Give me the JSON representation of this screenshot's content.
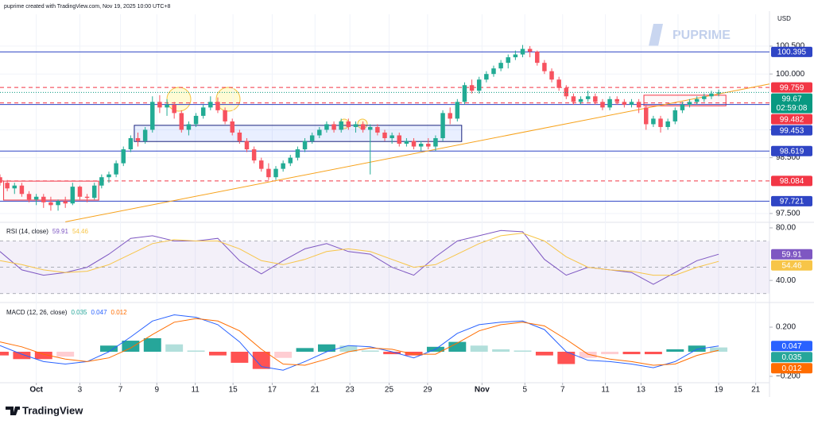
{
  "header": {
    "credit": "puprime created with TradingView.com, Nov 19, 2025 10:00 UTC+8",
    "currency": "USD",
    "watermark": "PUPRIME",
    "brand": "TradingView"
  },
  "chart_data": [
    {
      "type": "candlestick",
      "x": [
        0,
        1,
        2,
        3,
        4,
        5,
        6,
        7,
        8,
        9,
        10,
        11,
        12,
        13,
        14,
        15,
        16,
        17,
        18,
        19,
        20,
        21,
        22,
        23,
        24,
        25,
        26,
        27,
        28,
        29,
        30,
        31,
        32,
        33,
        34,
        35,
        36,
        37,
        38,
        39,
        40,
        41,
        42,
        43,
        44,
        45,
        46,
        47,
        48,
        49,
        50,
        51,
        52,
        53,
        54,
        55,
        56,
        57,
        58,
        59,
        60,
        61,
        62,
        63,
        64,
        65,
        66,
        67,
        68,
        69,
        70,
        71,
        72,
        73,
        74,
        75,
        76,
        77,
        78,
        79,
        80,
        81,
        82,
        83,
        84,
        85,
        86,
        87,
        88,
        89,
        90,
        91,
        92,
        93,
        94,
        95,
        96,
        97,
        98,
        99
      ],
      "open": [
        98.15,
        98.05,
        97.95,
        98.0,
        97.85,
        97.75,
        97.8,
        97.7,
        97.65,
        97.72,
        97.68,
        97.98,
        97.8,
        97.78,
        98.0,
        98.15,
        98.2,
        98.4,
        98.65,
        98.85,
        98.8,
        99.0,
        99.5,
        99.4,
        99.45,
        99.3,
        99.0,
        99.1,
        99.25,
        99.4,
        99.5,
        99.35,
        99.15,
        98.95,
        98.8,
        98.65,
        98.45,
        98.3,
        98.15,
        98.3,
        98.4,
        98.5,
        98.65,
        98.8,
        98.9,
        99.0,
        99.1,
        99.0,
        99.15,
        99.05,
        99.1,
        99.0,
        99.05,
        98.95,
        98.85,
        98.9,
        98.75,
        98.8,
        98.7,
        98.75,
        98.7,
        98.85,
        99.3,
        99.2,
        99.5,
        99.8,
        99.7,
        99.9,
        100.0,
        100.1,
        100.2,
        100.3,
        100.35,
        100.45,
        100.4,
        100.2,
        100.05,
        99.9,
        99.75,
        99.6,
        99.5,
        99.55,
        99.6,
        99.5,
        99.4,
        99.55,
        99.5,
        99.45,
        99.5,
        99.4,
        99.1,
        99.2,
        99.05,
        99.15,
        99.35,
        99.45,
        99.5,
        99.55,
        99.6,
        99.65
      ],
      "high": [
        98.2,
        98.1,
        98.05,
        98.05,
        97.9,
        97.85,
        97.85,
        97.8,
        97.75,
        97.8,
        98.05,
        98.0,
        97.85,
        98.05,
        98.2,
        98.25,
        98.45,
        98.7,
        98.9,
        98.95,
        99.05,
        99.6,
        99.62,
        99.55,
        99.5,
        99.35,
        99.15,
        99.3,
        99.45,
        99.6,
        99.58,
        99.4,
        99.2,
        99.0,
        98.85,
        98.7,
        98.5,
        98.4,
        98.35,
        98.45,
        98.55,
        98.7,
        98.85,
        98.95,
        99.05,
        99.15,
        99.15,
        99.2,
        99.2,
        99.15,
        99.15,
        99.1,
        99.1,
        99.0,
        98.95,
        98.95,
        98.85,
        98.85,
        98.8,
        98.85,
        98.9,
        99.35,
        99.4,
        99.55,
        99.85,
        99.9,
        99.95,
        100.05,
        100.15,
        100.25,
        100.35,
        100.42,
        100.52,
        100.5,
        100.42,
        100.25,
        100.1,
        99.95,
        99.8,
        99.65,
        99.6,
        99.7,
        99.65,
        99.55,
        99.6,
        99.6,
        99.55,
        99.55,
        99.55,
        99.45,
        99.25,
        99.25,
        99.2,
        99.4,
        99.5,
        99.55,
        99.6,
        99.65,
        99.7,
        99.72
      ],
      "low": [
        98.0,
        97.9,
        97.85,
        97.8,
        97.7,
        97.65,
        97.6,
        97.55,
        97.55,
        97.6,
        97.65,
        97.75,
        97.7,
        97.75,
        97.95,
        98.05,
        98.15,
        98.35,
        98.6,
        98.7,
        98.75,
        98.95,
        99.3,
        99.25,
        99.2,
        98.95,
        98.9,
        99.05,
        99.2,
        99.35,
        99.3,
        99.1,
        98.9,
        98.75,
        98.6,
        98.4,
        98.25,
        98.1,
        98.1,
        98.25,
        98.35,
        98.45,
        98.6,
        98.75,
        98.85,
        98.95,
        98.95,
        98.95,
        99.0,
        98.95,
        98.95,
        98.2,
        98.9,
        98.8,
        98.75,
        98.7,
        98.7,
        98.65,
        98.62,
        98.65,
        98.62,
        98.8,
        99.1,
        99.15,
        99.45,
        99.65,
        99.65,
        99.85,
        99.95,
        100.05,
        100.1,
        100.25,
        100.3,
        100.3,
        100.15,
        100.0,
        99.85,
        99.7,
        99.55,
        99.45,
        99.45,
        99.5,
        99.45,
        99.35,
        99.35,
        99.45,
        99.4,
        99.4,
        99.3,
        99.0,
        99.05,
        98.95,
        99.0,
        99.1,
        99.3,
        99.4,
        99.45,
        99.5,
        99.55,
        99.6
      ],
      "close": [
        98.05,
        97.95,
        98.0,
        97.85,
        97.75,
        97.8,
        97.7,
        97.65,
        97.72,
        97.68,
        97.98,
        97.8,
        97.78,
        98.0,
        98.15,
        98.2,
        98.4,
        98.65,
        98.85,
        98.8,
        99.0,
        99.5,
        99.4,
        99.45,
        99.3,
        99.0,
        99.1,
        99.25,
        99.4,
        99.5,
        99.35,
        99.15,
        98.95,
        98.8,
        98.65,
        98.45,
        98.3,
        98.15,
        98.3,
        98.4,
        98.5,
        98.65,
        98.8,
        98.9,
        99.0,
        99.1,
        99.0,
        99.15,
        99.05,
        99.1,
        99.0,
        99.05,
        98.95,
        98.85,
        98.9,
        98.75,
        98.8,
        98.7,
        98.75,
        98.7,
        98.85,
        99.3,
        99.2,
        99.5,
        99.8,
        99.7,
        99.9,
        100.0,
        100.1,
        100.2,
        100.3,
        100.35,
        100.45,
        100.4,
        100.2,
        100.05,
        99.9,
        99.75,
        99.6,
        99.5,
        99.55,
        99.6,
        99.5,
        99.4,
        99.55,
        99.5,
        99.45,
        99.5,
        99.4,
        99.1,
        99.2,
        99.05,
        99.15,
        99.35,
        99.45,
        99.5,
        99.55,
        99.6,
        99.65,
        99.67
      ],
      "up_color": "#22ab94",
      "down_color": "#f7525f",
      "countdown": "02:59:08",
      "last_color": "#089981",
      "xlim": [
        0,
        106
      ],
      "xticks": [
        {
          "value": 5.0,
          "label": "Oct"
        },
        {
          "value": 11.0,
          "label": "3"
        },
        {
          "value": 16.6,
          "label": "7"
        },
        {
          "value": 21.6,
          "label": "9"
        },
        {
          "value": 26.9,
          "label": "11"
        },
        {
          "value": 32.1,
          "label": "15"
        },
        {
          "value": 37.5,
          "label": "17"
        },
        {
          "value": 43.4,
          "label": "21"
        },
        {
          "value": 48.2,
          "label": "23"
        },
        {
          "value": 53.6,
          "label": "25"
        },
        {
          "value": 58.9,
          "label": "29"
        },
        {
          "value": 66.4,
          "label": "Nov"
        },
        {
          "value": 72.3,
          "label": "5"
        },
        {
          "value": 77.5,
          "label": "7"
        },
        {
          "value": 83.4,
          "label": "11"
        },
        {
          "value": 88.3,
          "label": "13"
        },
        {
          "value": 93.4,
          "label": "15"
        },
        {
          "value": 99.0,
          "label": "19"
        },
        {
          "value": 104.1,
          "label": "21"
        }
      ],
      "ylim": [
        97.37,
        101.07
      ],
      "yticks": [
        {
          "value": 97.5,
          "label": "97.500"
        },
        {
          "value": 98.5,
          "label": "98.500"
        },
        {
          "value": 99.0,
          "label": "99.000"
        },
        {
          "value": 100.0,
          "label": "100.000"
        },
        {
          "value": 100.5,
          "label": "100.500"
        }
      ],
      "grid": true,
      "levels": [
        {
          "value": 100.395,
          "color": "#2f45c5",
          "dashed": false
        },
        {
          "value": 99.759,
          "color": "#f23645",
          "dashed": true
        },
        {
          "value": 99.482,
          "color": "#f23645",
          "dashed": true
        },
        {
          "value": 99.453,
          "color": "#2f45c5",
          "dashed": false
        },
        {
          "value": 98.619,
          "color": "#2f45c5",
          "dashed": false
        },
        {
          "value": 98.084,
          "color": "#f23645",
          "dashed": true
        },
        {
          "value": 97.721,
          "color": "#2f45c5",
          "dashed": false
        }
      ],
      "trendline": {
        "x": [
          9,
          106
        ],
        "y": [
          97.35,
          99.82
        ],
        "color": "#f7a21b"
      },
      "zones": [
        {
          "x": [
            18.5,
            63.6
          ],
          "y": [
            98.79,
            99.08
          ],
          "stroke": "#1a237e",
          "fill": "rgba(41,98,255,0.10)"
        },
        {
          "x": [
            0.5,
            13.6
          ],
          "y": [
            97.74,
            98.08
          ],
          "stroke": "#f23645",
          "fill": "rgba(242,54,69,0.04)"
        },
        {
          "x": [
            88.7,
            100.0
          ],
          "y": [
            99.43,
            99.62
          ],
          "stroke": "#f23645",
          "fill": "rgba(242,54,69,0.04)"
        }
      ]
    },
    {
      "type": "line",
      "title": "RSI (14, close)",
      "x": [
        0,
        3,
        6,
        9,
        12,
        15,
        18,
        21,
        24,
        27,
        30,
        33,
        36,
        39,
        42,
        45,
        48,
        51,
        54,
        57,
        60,
        63,
        66,
        69,
        72,
        75,
        78,
        81,
        84,
        87,
        90,
        93,
        96,
        99
      ],
      "series": [
        {
          "color": "#7e57c2",
          "values": [
            62,
            48,
            44,
            46,
            50,
            60,
            72,
            74,
            70,
            70,
            72,
            55,
            45,
            55,
            64,
            68,
            62,
            60,
            50,
            44,
            58,
            70,
            74,
            78,
            77,
            56,
            44,
            50,
            48,
            46,
            37,
            46,
            55,
            59.91
          ]
        },
        {
          "color": "#f7c548",
          "values": [
            55,
            52,
            48,
            46,
            47,
            52,
            60,
            68,
            71,
            70,
            70,
            64,
            55,
            52,
            56,
            62,
            64,
            62,
            56,
            50,
            52,
            60,
            68,
            74,
            76,
            70,
            58,
            50,
            48,
            47,
            44,
            44,
            50,
            54.46
          ]
        }
      ],
      "xlim": [
        0,
        106
      ],
      "ylim": [
        25,
        83
      ],
      "yticks": [
        {
          "value": 80,
          "label": "80.00"
        },
        {
          "value": 40,
          "label": "40.00"
        }
      ],
      "band": [
        30,
        70
      ],
      "midline": 50,
      "band_color": "rgba(126,87,194,0.09)"
    },
    {
      "type": "macd",
      "title": "MACD (12, 26, close)",
      "x": [
        0,
        3,
        6,
        9,
        12,
        15,
        18,
        21,
        24,
        27,
        30,
        33,
        36,
        39,
        42,
        45,
        48,
        51,
        54,
        57,
        60,
        63,
        66,
        69,
        72,
        75,
        78,
        81,
        84,
        87,
        90,
        93,
        96,
        99
      ],
      "histogram": {
        "values": [
          -0.03,
          -0.06,
          -0.06,
          -0.04,
          0,
          0.05,
          0.09,
          0.11,
          0.06,
          0.01,
          -0.03,
          -0.09,
          -0.14,
          -0.05,
          0.03,
          0.06,
          0.05,
          0.01,
          -0.02,
          -0.03,
          0.04,
          0.08,
          0.05,
          0.02,
          0.01,
          -0.03,
          -0.1,
          -0.05,
          -0.02,
          -0.02,
          -0.02,
          0.02,
          0.05,
          0.035
        ],
        "colors": [
          "#26a69a",
          "#b2dfdb",
          "#ff5252",
          "#ffcdd2"
        ]
      },
      "series": [
        {
          "color": "#2962ff",
          "values": [
            0.05,
            -0.02,
            -0.08,
            -0.1,
            -0.08,
            0,
            0.12,
            0.25,
            0.3,
            0.28,
            0.22,
            0.08,
            -0.12,
            -0.15,
            -0.08,
            0,
            0.05,
            0.04,
            0,
            -0.05,
            0.02,
            0.15,
            0.22,
            0.24,
            0.25,
            0.18,
            0,
            -0.07,
            -0.08,
            -0.1,
            -0.13,
            -0.08,
            0.02,
            0.047
          ]
        },
        {
          "color": "#ff6d00",
          "values": [
            0.08,
            0.04,
            -0.02,
            -0.06,
            -0.08,
            -0.05,
            0.03,
            0.14,
            0.24,
            0.27,
            0.25,
            0.17,
            0.02,
            -0.1,
            -0.11,
            -0.06,
            0,
            0.03,
            0.02,
            -0.02,
            -0.02,
            0.07,
            0.17,
            0.22,
            0.24,
            0.21,
            0.1,
            -0.02,
            -0.06,
            -0.08,
            -0.11,
            -0.1,
            -0.03,
            0.012
          ]
        }
      ],
      "xlim": [
        0,
        106
      ],
      "ylim": [
        -0.252,
        0.381
      ],
      "yticks": [
        {
          "value": 0.2,
          "label": "0.200"
        },
        {
          "value": -0.2,
          "label": "−0.200"
        }
      ]
    }
  ]
}
